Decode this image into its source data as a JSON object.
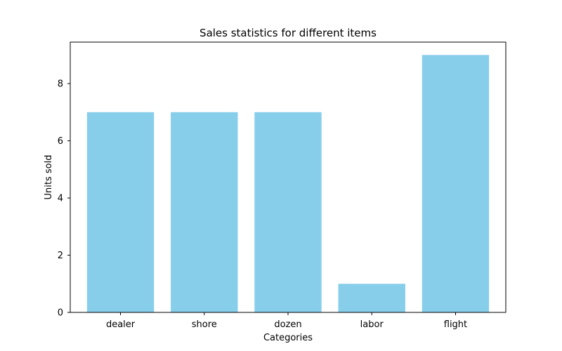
{
  "chart_data": {
    "type": "bar",
    "title": "Sales statistics for different items",
    "xlabel": "Categories",
    "ylabel": "Units sold",
    "categories": [
      "dealer",
      "shore",
      "dozen",
      "labor",
      "flight"
    ],
    "values": [
      7,
      7,
      7,
      1,
      9
    ],
    "ylim": [
      0,
      9.45
    ],
    "yticks": [
      0,
      2,
      4,
      6,
      8
    ],
    "grid": false,
    "bar_color": "#87CEEB"
  }
}
